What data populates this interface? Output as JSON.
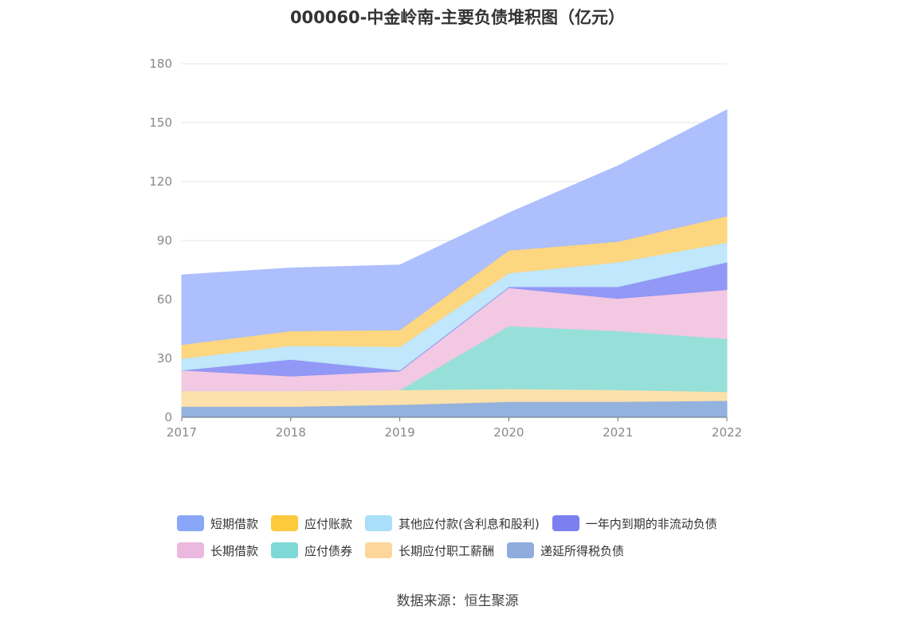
{
  "chart_data": {
    "type": "area",
    "stacked": true,
    "title": "000060-中金岭南-主要负债堆积图（亿元）",
    "x": [
      "2017",
      "2018",
      "2019",
      "2020",
      "2021",
      "2022"
    ],
    "ylim": [
      0,
      180
    ],
    "yticks": [
      0,
      30,
      60,
      90,
      120,
      150,
      180
    ],
    "grid": true,
    "legend_position": "bottom",
    "series": [
      {
        "name": "递延所得税负债",
        "color": "#8eaedd",
        "values": [
          5.5,
          5.5,
          6.5,
          8,
          8,
          8.5
        ]
      },
      {
        "name": "长期应付职工薪酬",
        "color": "#fde0a8",
        "values": [
          8,
          8,
          7.5,
          6.5,
          6,
          4.5
        ]
      },
      {
        "name": "应付债券",
        "color": "#92dfd9",
        "values": [
          0,
          0,
          0,
          32,
          30,
          27
        ]
      },
      {
        "name": "长期借款",
        "color": "#f2c6e2",
        "values": [
          10.5,
          7.5,
          9.5,
          19.5,
          16.5,
          25
        ]
      },
      {
        "name": "一年内到期的非流动负债",
        "color": "#8d93f5",
        "values": [
          0,
          8.5,
          0.5,
          0.5,
          6,
          14
        ]
      },
      {
        "name": "其他应付款(含利息和股利)",
        "color": "#bde6fb",
        "values": [
          6,
          7,
          12,
          7,
          12.5,
          10
        ]
      },
      {
        "name": "应付账款",
        "color": "#fdd47a",
        "values": [
          7,
          7.5,
          8.5,
          11.5,
          10.5,
          13.5
        ]
      },
      {
        "name": "短期借款",
        "color": "#a9bcfc",
        "values": [
          35.5,
          32,
          33,
          19,
          38.5,
          54
        ]
      }
    ],
    "legend_rows": [
      [
        {
          "name": "短期借款",
          "color": "#8aa6f8"
        },
        {
          "name": "应付账款",
          "color": "#fdc93d"
        },
        {
          "name": "其他应付款(含利息和股利)",
          "color": "#a9dff8"
        },
        {
          "name": "一年内到期的非流动负债",
          "color": "#7b7ff0"
        }
      ],
      [
        {
          "name": "长期借款",
          "color": "#ebb8de"
        },
        {
          "name": "应付债券",
          "color": "#7ed8d5"
        },
        {
          "name": "长期应付职工薪酬",
          "color": "#fcd69a"
        },
        {
          "name": "递延所得税负债",
          "color": "#90acdc"
        }
      ]
    ]
  },
  "source": "数据来源：恒生聚源"
}
